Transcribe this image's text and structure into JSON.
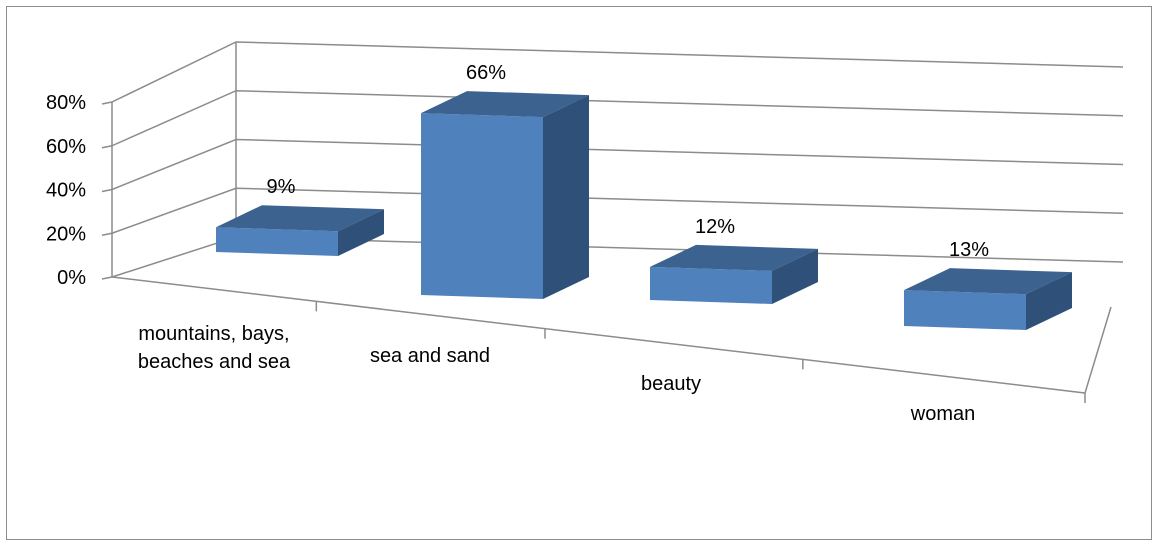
{
  "chart_data": {
    "type": "bar",
    "categories": [
      "mountains, bays, beaches and sea",
      "sea and sand",
      "beauty",
      "woman"
    ],
    "category_lines": [
      [
        "mountains, bays,",
        "beaches and sea"
      ],
      [
        "sea and sand"
      ],
      [
        "beauty"
      ],
      [
        "woman"
      ]
    ],
    "values": [
      9,
      66,
      12,
      13
    ],
    "data_labels": [
      "9%",
      "66%",
      "12%",
      "13%"
    ],
    "y_ticks": [
      "0%",
      "20%",
      "40%",
      "60%",
      "80%"
    ],
    "ylim": [
      0,
      80
    ],
    "title": "",
    "xlabel": "",
    "ylabel": "",
    "grid": true,
    "legend": "none",
    "style": "3d-column",
    "colors": {
      "bar_front": "#4f81bd",
      "bar_top": "#3c6290",
      "bar_side": "#2f5078",
      "grid": "#8c8c8c",
      "frame": "#8c8c8c"
    }
  }
}
